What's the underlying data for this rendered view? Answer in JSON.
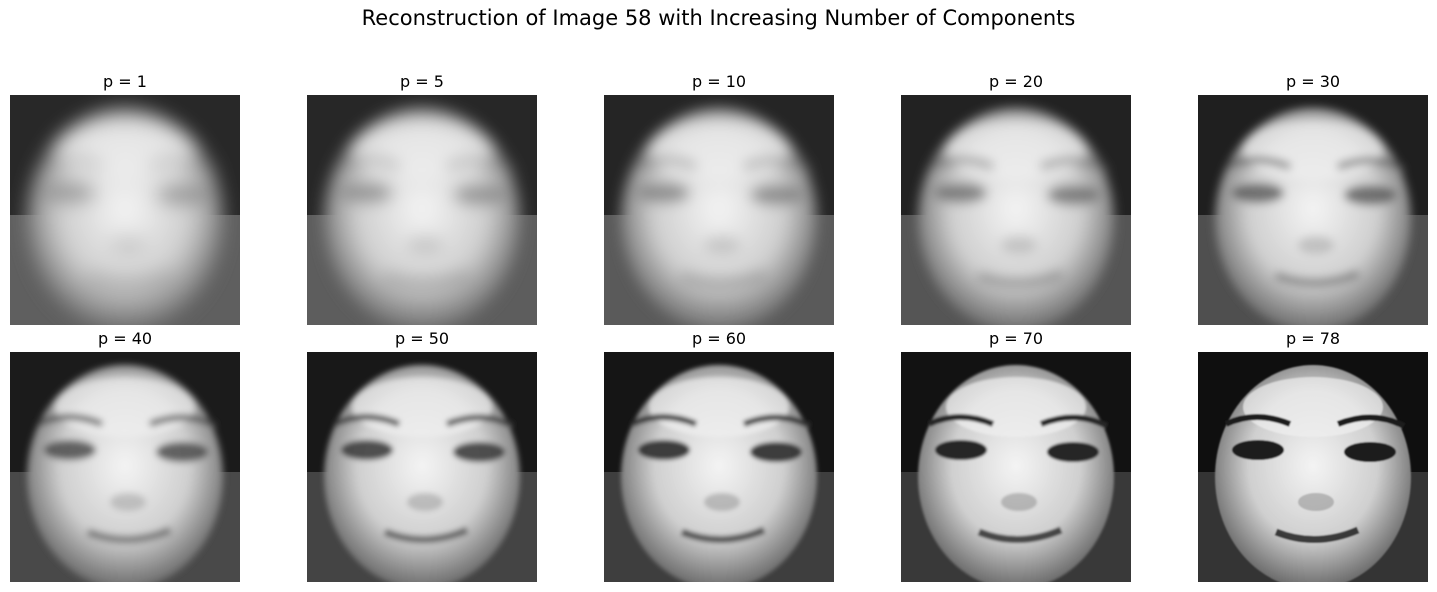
{
  "figure": {
    "title": "Reconstruction of Image 58 with Increasing Number of Components"
  },
  "panels": [
    {
      "label": "p = 1",
      "components": 1
    },
    {
      "label": "p = 5",
      "components": 5
    },
    {
      "label": "p = 10",
      "components": 10
    },
    {
      "label": "p = 20",
      "components": 20
    },
    {
      "label": "p = 30",
      "components": 30
    },
    {
      "label": "p = 40",
      "components": 40
    },
    {
      "label": "p = 50",
      "components": 50
    },
    {
      "label": "p = 60",
      "components": 60
    },
    {
      "label": "p = 70",
      "components": 70
    },
    {
      "label": "p = 78",
      "components": 78
    }
  ],
  "colormap": "gray"
}
